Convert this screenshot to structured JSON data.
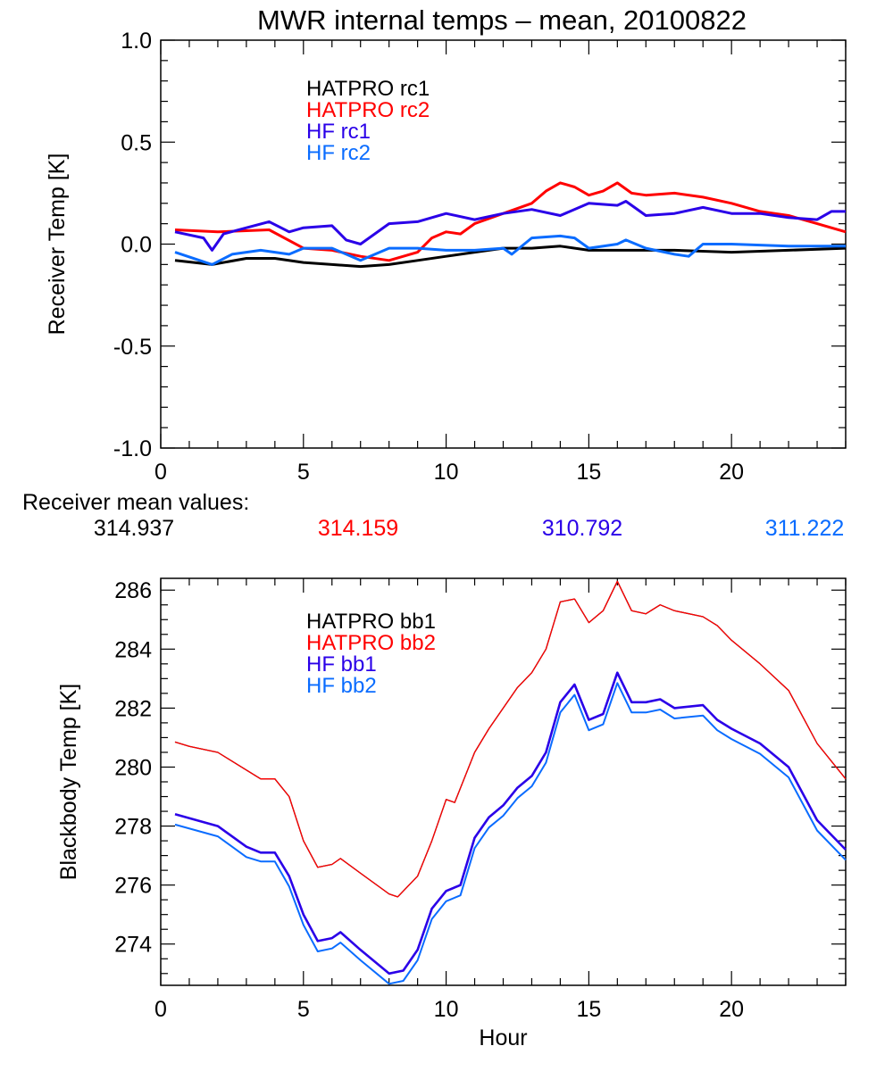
{
  "title": "MWR internal temps – mean, 20100822",
  "mean_values": {
    "label": "Receiver mean values:",
    "values": [
      "314.937",
      "314.159",
      "310.792",
      "311.222"
    ],
    "colors": [
      "#000000",
      "#ff0000",
      "#2a00e8",
      "#0a6cff"
    ]
  },
  "chart_data": [
    {
      "type": "line",
      "title": "MWR internal temps – mean, 20100822",
      "xlabel": "",
      "ylabel": "Receiver Temp [K]",
      "xlim": [
        0,
        24
      ],
      "ylim": [
        -1.0,
        1.0
      ],
      "xticks": [
        "0",
        "5",
        "10",
        "15",
        "20"
      ],
      "xtick_values": [
        0,
        5,
        10,
        15,
        20
      ],
      "yticks": [
        "-1.0",
        "-0.5",
        "0.0",
        "0.5",
        "1.0"
      ],
      "ytick_values": [
        -1.0,
        -0.5,
        0.0,
        0.5,
        1.0
      ],
      "x_minor": 1,
      "y_minor": 0.1,
      "legend_placement": "top-left",
      "series": [
        {
          "name": "HATPRO rc1",
          "color": "#000000",
          "x": [
            0.5,
            1.8,
            3,
            4,
            5,
            6,
            7,
            8,
            9,
            10,
            11,
            12,
            13,
            14,
            15,
            16,
            17,
            18,
            20,
            22,
            24
          ],
          "y": [
            -0.08,
            -0.1,
            -0.07,
            -0.07,
            -0.09,
            -0.1,
            -0.11,
            -0.1,
            -0.08,
            -0.06,
            -0.04,
            -0.02,
            -0.02,
            -0.01,
            -0.03,
            -0.03,
            -0.03,
            -0.03,
            -0.04,
            -0.03,
            -0.02
          ]
        },
        {
          "name": "HATPRO rc2",
          "color": "#ff0000",
          "x": [
            0.5,
            2,
            3.8,
            5,
            6,
            7,
            8,
            9,
            9.5,
            10,
            10.5,
            11,
            12,
            13,
            13.5,
            14,
            14.5,
            15,
            15.5,
            16,
            16.5,
            17,
            18,
            19,
            20,
            21,
            22,
            23,
            24
          ],
          "y": [
            0.07,
            0.06,
            0.07,
            -0.02,
            -0.03,
            -0.06,
            -0.08,
            -0.04,
            0.03,
            0.06,
            0.05,
            0.1,
            0.15,
            0.2,
            0.26,
            0.3,
            0.28,
            0.24,
            0.26,
            0.3,
            0.25,
            0.24,
            0.25,
            0.23,
            0.2,
            0.16,
            0.14,
            0.1,
            0.06
          ]
        },
        {
          "name": "HF rc1",
          "color": "#2a00e8",
          "x": [
            0.5,
            1.5,
            1.8,
            2.2,
            3,
            3.8,
            4.5,
            5,
            6,
            6.5,
            7,
            8,
            9,
            10,
            11,
            12,
            13,
            14,
            15,
            16,
            16.3,
            17,
            18,
            19,
            20,
            21,
            22,
            23,
            23.5,
            24
          ],
          "y": [
            0.06,
            0.03,
            -0.03,
            0.05,
            0.08,
            0.11,
            0.06,
            0.08,
            0.09,
            0.02,
            0.0,
            0.1,
            0.11,
            0.15,
            0.12,
            0.15,
            0.17,
            0.14,
            0.2,
            0.19,
            0.21,
            0.14,
            0.15,
            0.18,
            0.15,
            0.15,
            0.13,
            0.12,
            0.16,
            0.16
          ]
        },
        {
          "name": "HF rc2",
          "color": "#0a6cff",
          "x": [
            0.5,
            1.8,
            2.5,
            3.5,
            4.5,
            5,
            6,
            7,
            8,
            9,
            10,
            11,
            12,
            12.3,
            13,
            14,
            14.5,
            15,
            16,
            16.3,
            17,
            18,
            18.5,
            19,
            20,
            22,
            23,
            24
          ],
          "y": [
            -0.04,
            -0.1,
            -0.05,
            -0.03,
            -0.05,
            -0.02,
            -0.02,
            -0.08,
            -0.02,
            -0.02,
            -0.03,
            -0.03,
            -0.02,
            -0.05,
            0.03,
            0.04,
            0.03,
            -0.02,
            0.0,
            0.02,
            -0.02,
            -0.05,
            -0.06,
            0.0,
            0.0,
            -0.01,
            -0.01,
            -0.01
          ]
        }
      ]
    },
    {
      "type": "line",
      "xlabel": "Hour",
      "ylabel": "Blackbody Temp [K]",
      "xlim": [
        0,
        24
      ],
      "ylim": [
        272.6,
        286.4
      ],
      "xticks": [
        "0",
        "5",
        "10",
        "15",
        "20"
      ],
      "xtick_values": [
        0,
        5,
        10,
        15,
        20
      ],
      "yticks": [
        "274",
        "276",
        "278",
        "280",
        "282",
        "284",
        "286"
      ],
      "ytick_values": [
        274,
        276,
        278,
        280,
        282,
        284,
        286
      ],
      "x_minor": 1,
      "y_minor": 0.5,
      "legend_placement": "top-left",
      "series": [
        {
          "name": "HATPRO bb1",
          "color": "#000000",
          "x": [
            0.5,
            1,
            2,
            3,
            3.5,
            4,
            4.5,
            5,
            5.5,
            6,
            6.3,
            7,
            8,
            8.3,
            9,
            9.5,
            10,
            10.3,
            11,
            11.5,
            12,
            12.5,
            13,
            13.5,
            14,
            14.5,
            15,
            15.5,
            16,
            16.5,
            17,
            17.5,
            18,
            19,
            19.5,
            20,
            21,
            22,
            22.5,
            23,
            24
          ],
          "y": [
            280.85,
            280.7,
            280.5,
            279.9,
            279.6,
            279.6,
            279.0,
            277.5,
            276.6,
            276.7,
            276.9,
            276.4,
            275.7,
            275.6,
            276.3,
            277.5,
            278.9,
            278.8,
            280.5,
            281.3,
            282.0,
            282.7,
            283.2,
            284.0,
            285.6,
            285.7,
            284.9,
            285.3,
            286.3,
            285.3,
            285.2,
            285.5,
            285.3,
            285.1,
            284.8,
            284.3,
            283.5,
            282.6,
            281.7,
            280.8,
            279.6
          ]
        },
        {
          "name": "HATPRO bb2",
          "color": "#ff0000",
          "x": [
            0.5,
            1,
            2,
            3,
            3.5,
            4,
            4.5,
            5,
            5.5,
            6,
            6.3,
            7,
            8,
            8.3,
            9,
            9.5,
            10,
            10.3,
            11,
            11.5,
            12,
            12.5,
            13,
            13.5,
            14,
            14.5,
            15,
            15.5,
            16,
            16.5,
            17,
            17.5,
            18,
            19,
            19.5,
            20,
            21,
            22,
            22.5,
            23,
            24
          ],
          "y": [
            280.85,
            280.7,
            280.5,
            279.9,
            279.6,
            279.6,
            279.0,
            277.5,
            276.6,
            276.7,
            276.9,
            276.4,
            275.7,
            275.6,
            276.3,
            277.5,
            278.9,
            278.8,
            280.5,
            281.3,
            282.0,
            282.7,
            283.2,
            284.0,
            285.6,
            285.7,
            284.9,
            285.3,
            286.3,
            285.3,
            285.2,
            285.5,
            285.3,
            285.1,
            284.8,
            284.3,
            283.5,
            282.6,
            281.7,
            280.8,
            279.6
          ]
        },
        {
          "name": "HF bb1",
          "color": "#2a00e8",
          "x": [
            0.5,
            2,
            3,
            3.5,
            4,
            4.5,
            5,
            5.5,
            6,
            6.3,
            7,
            8,
            8.5,
            9,
            9.5,
            10,
            10.5,
            11,
            11.5,
            12,
            12.5,
            13,
            13.5,
            14,
            14.5,
            15,
            15.5,
            16,
            16.5,
            17,
            17.5,
            18,
            19,
            19.5,
            20,
            21,
            22,
            23,
            24
          ],
          "y": [
            278.4,
            278.0,
            277.3,
            277.1,
            277.1,
            276.3,
            275.0,
            274.1,
            274.2,
            274.4,
            273.8,
            273.0,
            273.1,
            273.8,
            275.2,
            275.8,
            276.0,
            277.6,
            278.3,
            278.7,
            279.3,
            279.7,
            280.5,
            282.2,
            282.8,
            281.6,
            281.8,
            283.2,
            282.2,
            282.2,
            282.3,
            282.0,
            282.1,
            281.6,
            281.3,
            280.8,
            280.0,
            278.2,
            277.2
          ]
        },
        {
          "name": "HF bb2",
          "color": "#0a6cff",
          "x": [
            0.5,
            2,
            3,
            3.5,
            4,
            4.5,
            5,
            5.5,
            6,
            6.3,
            7,
            8,
            8.5,
            9,
            9.5,
            10,
            10.5,
            11,
            11.5,
            12,
            12.5,
            13,
            13.5,
            14,
            14.5,
            15,
            15.5,
            16,
            16.5,
            17,
            17.5,
            18,
            19,
            19.5,
            20,
            21,
            22,
            23,
            24
          ],
          "y": [
            278.05,
            277.65,
            276.95,
            276.8,
            276.8,
            275.95,
            274.65,
            273.75,
            273.85,
            274.05,
            273.45,
            272.65,
            272.75,
            273.45,
            274.85,
            275.45,
            275.65,
            277.25,
            277.95,
            278.35,
            278.95,
            279.35,
            280.15,
            281.85,
            282.45,
            281.25,
            281.45,
            282.85,
            281.85,
            281.85,
            281.95,
            281.65,
            281.75,
            281.25,
            280.95,
            280.45,
            279.65,
            277.85,
            276.85
          ]
        }
      ]
    }
  ]
}
